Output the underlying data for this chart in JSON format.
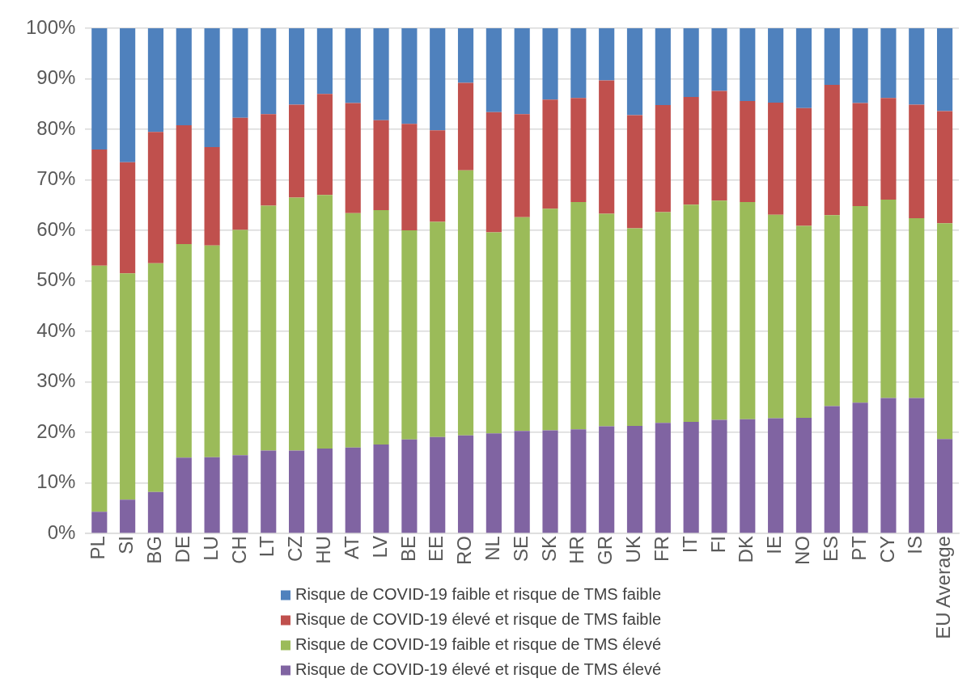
{
  "chart_data": {
    "type": "bar",
    "stacked": true,
    "categories": [
      "PL",
      "SI",
      "BG",
      "DE",
      "LU",
      "CH",
      "LT",
      "CZ",
      "HU",
      "AT",
      "LV",
      "BE",
      "EE",
      "RO",
      "NL",
      "SE",
      "SK",
      "HR",
      "GR",
      "UK",
      "FR",
      "IT",
      "FI",
      "DK",
      "IE",
      "NO",
      "ES",
      "PT",
      "CY",
      "IS",
      "EU Average"
    ],
    "series": [
      {
        "name": "Risque de COVID-19 élevé et risque de TMS élevé",
        "color": "#8064a2",
        "values": [
          4.3,
          6.7,
          8.2,
          15,
          15.1,
          15.5,
          16.4,
          16.4,
          16.8,
          17,
          17.6,
          18.6,
          19.1,
          19.4,
          19.8,
          20.3,
          20.4,
          20.6,
          21.2,
          21.3,
          21.9,
          22.1,
          22.5,
          22.6,
          22.8,
          22.9,
          25.2,
          25.9,
          26.8,
          26.8,
          18.7
        ]
      },
      {
        "name": "Risque de COVID-19 faible et risque de TMS élevé",
        "color": "#9bbb59",
        "values": [
          48.7,
          44.8,
          45.3,
          42.3,
          41.9,
          44.6,
          48.5,
          50.1,
          50.2,
          46.4,
          46.4,
          41.4,
          42.6,
          52.5,
          39.8,
          42.3,
          43.9,
          45,
          42.1,
          39.1,
          41.7,
          43,
          43.4,
          43,
          40.3,
          38,
          37.8,
          38.9,
          39.3,
          35.6,
          42.7
        ]
      },
      {
        "name": "Risque de COVID-19 élevé et risque de TMS faible",
        "color": "#c0504d",
        "values": [
          23,
          22,
          26,
          23.5,
          19.5,
          22.2,
          18.1,
          18.4,
          20,
          21.8,
          17.8,
          21.1,
          18.1,
          17.3,
          23.8,
          20.4,
          21.6,
          20.6,
          26.4,
          22.4,
          21.2,
          21.3,
          21.7,
          20,
          22.2,
          23.3,
          25.8,
          20.4,
          20.1,
          22.5,
          22.2
        ]
      },
      {
        "name": "Risque de COVID-19 faible et risque de TMS faible",
        "color": "#4f81bd",
        "values": [
          24,
          26.5,
          20.5,
          19.2,
          23.5,
          17.7,
          17,
          15.1,
          13,
          14.8,
          18.2,
          18.9,
          20.2,
          10.8,
          16.6,
          17,
          14.1,
          13.8,
          10.3,
          17.2,
          15.2,
          13.6,
          12.4,
          14.4,
          14.7,
          15.8,
          11.2,
          14.8,
          13.8,
          15.1,
          16.4
        ]
      }
    ],
    "ylim": [
      0,
      100
    ],
    "yticks": [
      {
        "value": 0,
        "label": "0%"
      },
      {
        "value": 10,
        "label": "10%"
      },
      {
        "value": 20,
        "label": "20%"
      },
      {
        "value": 30,
        "label": "30%"
      },
      {
        "value": 40,
        "label": "40%"
      },
      {
        "value": 50,
        "label": "50%"
      },
      {
        "value": 60,
        "label": "60%"
      },
      {
        "value": 70,
        "label": "70%"
      },
      {
        "value": 80,
        "label": "80%"
      },
      {
        "value": 90,
        "label": "90%"
      },
      {
        "value": 100,
        "label": "100%"
      }
    ],
    "grid": "y",
    "legend": "bottom"
  }
}
